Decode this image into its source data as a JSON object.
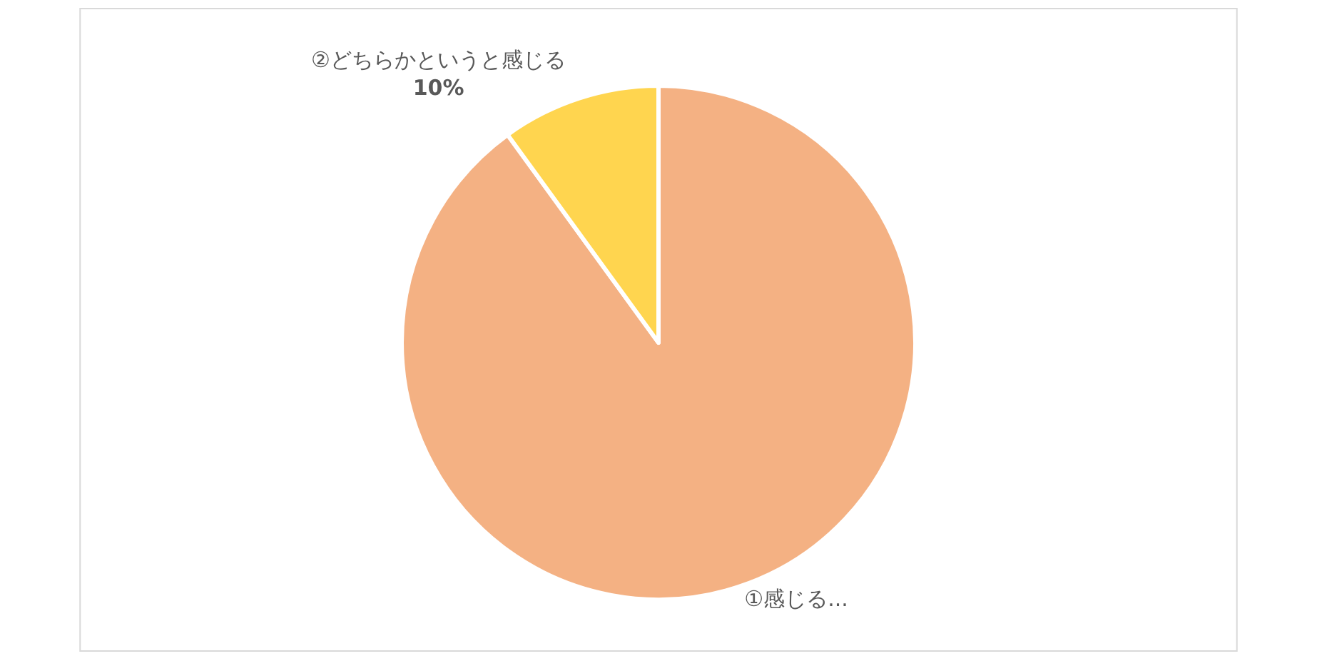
{
  "chart_data": {
    "type": "pie",
    "categories": [
      "①感じる...",
      "②どちらかというと感じる"
    ],
    "values": [
      90,
      10
    ],
    "value_labels": [
      null,
      "10%"
    ],
    "colors": [
      "#f4b183",
      "#ffd54f"
    ]
  }
}
